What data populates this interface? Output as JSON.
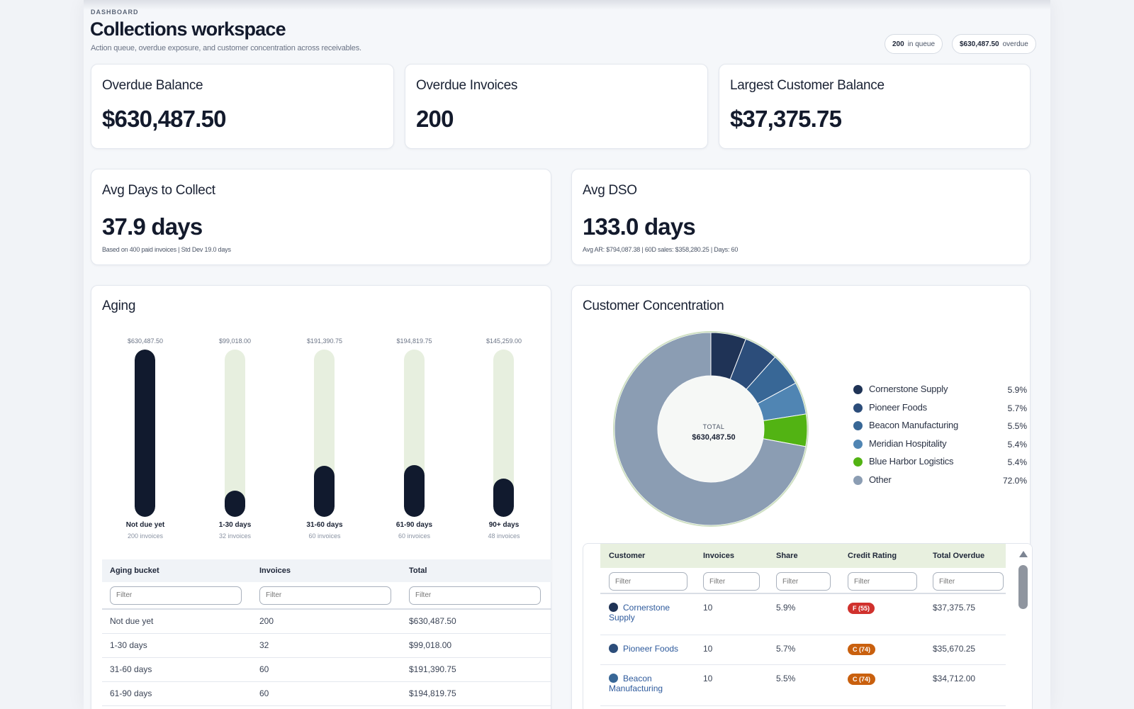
{
  "header": {
    "breadcrumb": "DASHBOARD",
    "title": "Collections workspace",
    "subtitle": "Action queue, overdue exposure, and customer concentration across receivables.",
    "queue_count": "200",
    "queue_label": "in queue",
    "overdue_amount": "$630,487.50",
    "overdue_label": "overdue"
  },
  "kpis": {
    "overdue_balance": {
      "title": "Overdue Balance",
      "value": "$630,487.50"
    },
    "overdue_invoices": {
      "title": "Overdue Invoices",
      "value": "200"
    },
    "largest_customer": {
      "title": "Largest Customer Balance",
      "value": "$37,375.75"
    },
    "avg_days": {
      "title": "Avg Days to Collect",
      "value": "37.9 days",
      "note": "Based on 400 paid invoices | Std Dev 19.0 days"
    },
    "avg_dso": {
      "title": "Avg DSO",
      "value": "133.0 days",
      "note": "Avg AR: $794,087.38 | 60D sales: $358,280.25 | Days: 60"
    }
  },
  "aging": {
    "title": "Aging",
    "buckets": [
      {
        "label": "Not due yet",
        "count_label": "200 invoices",
        "total_label": "$630,487.50",
        "total": 630487.5
      },
      {
        "label": "1-30 days",
        "count_label": "32 invoices",
        "total_label": "$99,018.00",
        "total": 99018.0
      },
      {
        "label": "31-60 days",
        "count_label": "60 invoices",
        "total_label": "$191,390.75",
        "total": 191390.75
      },
      {
        "label": "61-90 days",
        "count_label": "60 invoices",
        "total_label": "$194,819.75",
        "total": 194819.75
      },
      {
        "label": "90+ days",
        "count_label": "48 invoices",
        "total_label": "$145,259.00",
        "total": 145259.0
      }
    ],
    "table": {
      "headers": [
        "Aging bucket",
        "Invoices",
        "Total"
      ],
      "filter_placeholder": "Filter",
      "rows": [
        [
          "Not due yet",
          "200",
          "$630,487.50"
        ],
        [
          "1-30 days",
          "32",
          "$99,018.00"
        ],
        [
          "31-60 days",
          "60",
          "$191,390.75"
        ],
        [
          "61-90 days",
          "60",
          "$194,819.75"
        ]
      ]
    }
  },
  "concentration": {
    "title": "Customer Concentration",
    "center_label": "TOTAL",
    "center_value": "$630,487.50",
    "legend": [
      {
        "name": "Cornerstone Supply",
        "pct_label": "5.9%",
        "pct": 5.9,
        "color": "#1f3356"
      },
      {
        "name": "Pioneer Foods",
        "pct_label": "5.7%",
        "pct": 5.7,
        "color": "#2c4d7a"
      },
      {
        "name": "Beacon Manufacturing",
        "pct_label": "5.5%",
        "pct": 5.5,
        "color": "#386796"
      },
      {
        "name": "Meridian Hospitality",
        "pct_label": "5.4%",
        "pct": 5.4,
        "color": "#5085b3"
      },
      {
        "name": "Blue Harbor Logistics",
        "pct_label": "5.4%",
        "pct": 5.4,
        "color": "#52b313"
      },
      {
        "name": "Other",
        "pct_label": "72.0%",
        "pct": 72.0,
        "color": "#8b9db3"
      }
    ],
    "table": {
      "headers": [
        "Customer",
        "Invoices",
        "Share",
        "Credit Rating",
        "Total Overdue"
      ],
      "filter_placeholder": "Filter",
      "rows": [
        {
          "customer_line1": "Cornerstone",
          "customer_line2": "Supply",
          "dot": "#1f3356",
          "invoices": "10",
          "share": "5.9%",
          "rating": "F (55)",
          "rating_color": "#d0312d",
          "total": "$37,375.75"
        },
        {
          "customer_line1": "Pioneer Foods",
          "customer_line2": "",
          "dot": "#2c4d7a",
          "invoices": "10",
          "share": "5.7%",
          "rating": "C (74)",
          "rating_color": "#c9600e",
          "total": "$35,670.25"
        },
        {
          "customer_line1": "Beacon",
          "customer_line2": "Manufacturing",
          "dot": "#386796",
          "invoices": "10",
          "share": "5.5%",
          "rating": "C (74)",
          "rating_color": "#c9600e",
          "total": "$34,712.00"
        }
      ]
    }
  }
}
